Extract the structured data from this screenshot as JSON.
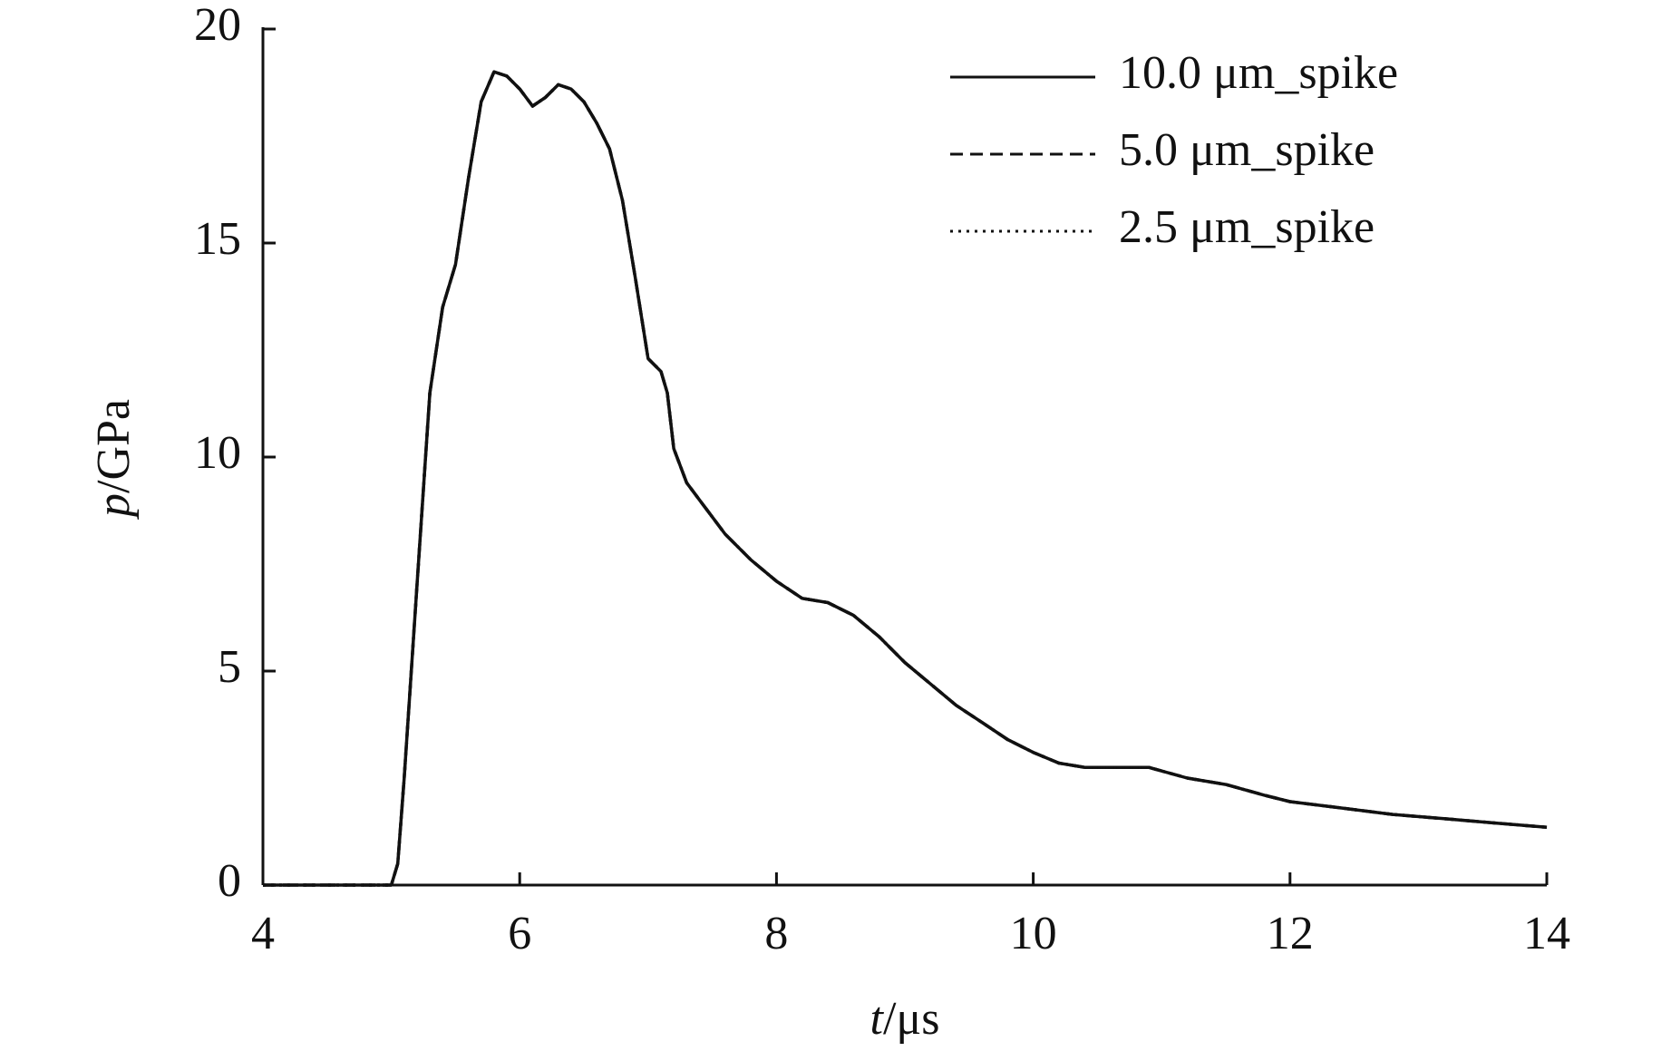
{
  "chart_data": {
    "type": "line",
    "x_label": "t/μs",
    "y_label": "p/GPa",
    "x": [
      4,
      4.5,
      5.0,
      5.05,
      5.1,
      5.2,
      5.3,
      5.4,
      5.5,
      5.6,
      5.7,
      5.8,
      5.9,
      6.0,
      6.1,
      6.2,
      6.3,
      6.4,
      6.5,
      6.6,
      6.7,
      6.8,
      6.9,
      7.0,
      7.1,
      7.15,
      7.2,
      7.3,
      7.4,
      7.5,
      7.6,
      7.8,
      8.0,
      8.2,
      8.4,
      8.6,
      8.8,
      9.0,
      9.2,
      9.4,
      9.6,
      9.8,
      10.0,
      10.2,
      10.4,
      10.6,
      10.9,
      11.2,
      11.5,
      11.8,
      12.0,
      12.4,
      12.8,
      13.2,
      13.6,
      14.0
    ],
    "series": [
      {
        "name": "10.0 μm_spike",
        "color": "#111111",
        "dash": "solid",
        "values": [
          0,
          0,
          0,
          0.5,
          2.5,
          7,
          11.5,
          13.5,
          14.5,
          16.5,
          18.3,
          19.0,
          18.9,
          18.6,
          18.2,
          18.4,
          18.7,
          18.6,
          18.3,
          17.8,
          17.2,
          16.0,
          14.2,
          12.3,
          12.0,
          11.5,
          10.2,
          9.4,
          9.0,
          8.6,
          8.2,
          7.6,
          7.1,
          6.7,
          6.6,
          6.3,
          5.8,
          5.2,
          4.7,
          4.2,
          3.8,
          3.4,
          3.1,
          2.85,
          2.75,
          2.75,
          2.75,
          2.5,
          2.35,
          2.1,
          1.95,
          1.8,
          1.65,
          1.55,
          1.45,
          1.35
        ]
      },
      {
        "name": "5.0 μm_spike",
        "color": "#111111",
        "dash": "dashed",
        "values": [
          0,
          0,
          0,
          0.5,
          2.5,
          7,
          11.5,
          13.5,
          14.5,
          16.5,
          18.3,
          19.0,
          18.9,
          18.6,
          18.2,
          18.4,
          18.7,
          18.6,
          18.3,
          17.8,
          17.2,
          16.0,
          14.2,
          12.3,
          12.0,
          11.5,
          10.2,
          9.4,
          9.0,
          8.6,
          8.2,
          7.6,
          7.1,
          6.7,
          6.6,
          6.3,
          5.8,
          5.2,
          4.7,
          4.2,
          3.8,
          3.4,
          3.1,
          2.85,
          2.75,
          2.75,
          2.75,
          2.5,
          2.35,
          2.1,
          1.95,
          1.8,
          1.65,
          1.55,
          1.45,
          1.35
        ]
      },
      {
        "name": "2.5 μm_spike",
        "color": "#111111",
        "dash": "dotted",
        "values": [
          0,
          0,
          0,
          0.5,
          2.5,
          7,
          11.5,
          13.5,
          14.5,
          16.5,
          18.3,
          19.0,
          18.9,
          18.6,
          18.2,
          18.4,
          18.7,
          18.6,
          18.3,
          17.8,
          17.2,
          16.0,
          14.2,
          12.3,
          12.0,
          11.5,
          10.2,
          9.4,
          9.0,
          8.6,
          8.2,
          7.6,
          7.1,
          6.7,
          6.6,
          6.3,
          5.8,
          5.2,
          4.7,
          4.2,
          3.8,
          3.4,
          3.1,
          2.85,
          2.75,
          2.75,
          2.75,
          2.5,
          2.35,
          2.1,
          1.95,
          1.8,
          1.65,
          1.55,
          1.45,
          1.35
        ]
      }
    ],
    "xlim": [
      4,
      14
    ],
    "xticks": [
      4,
      6,
      8,
      10,
      12,
      14
    ],
    "ylim": [
      0,
      20
    ],
    "yticks": [
      0,
      5,
      10,
      15,
      20
    ],
    "grid": false,
    "legend": "upper right"
  }
}
